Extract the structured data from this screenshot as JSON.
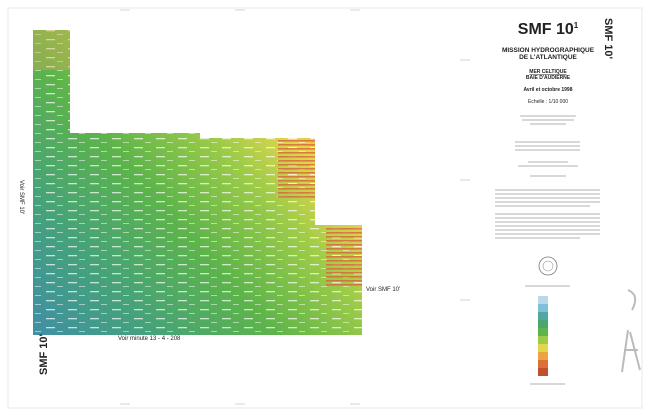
{
  "sheet_title": {
    "main": "SMF 10",
    "sup": "1"
  },
  "mission": [
    "MISSION HYDROGRAPHIQUE",
    "DE L'ATLANTIQUE"
  ],
  "area": [
    "MER CELTIQUE",
    "BAIE D'AUDIERNE"
  ],
  "date": "Avril et octobre 1998",
  "scale": "Echelle : 1/10 000",
  "neighbors": {
    "west": "Voir SMF 10'",
    "east": "Voir SMF 10'",
    "south": "Voir minute 13 - 4 - 208"
  },
  "margin_labels": {
    "top_right": "SMF 10'",
    "bottom_left": "SMF 10'"
  }
}
